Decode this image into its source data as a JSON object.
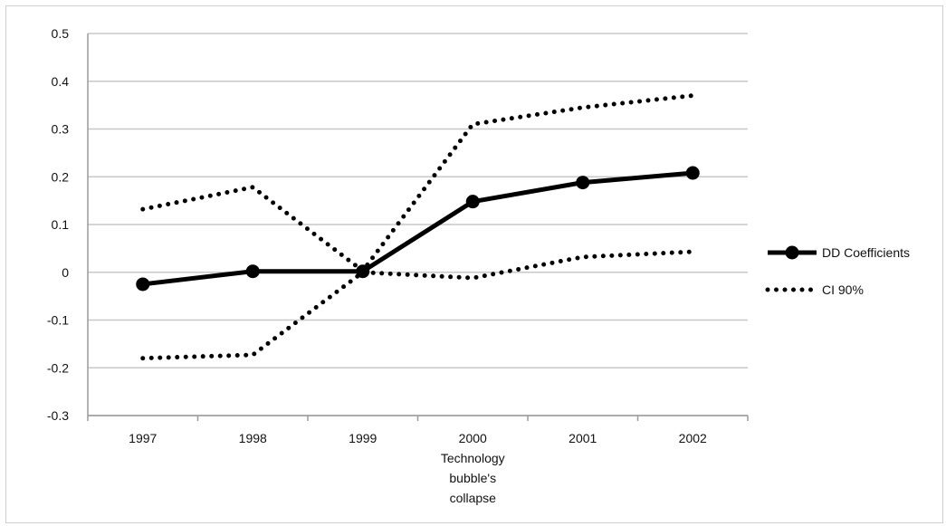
{
  "chart_data": {
    "type": "line",
    "title": "",
    "xlabel": "",
    "ylabel": "",
    "categories": [
      "1997",
      "1998",
      "1999",
      "2000",
      "2001",
      "2002"
    ],
    "ylim": [
      -0.3,
      0.5
    ],
    "y_ticks": [
      "0.5",
      "0.4",
      "0.3",
      "0.2",
      "0.1",
      "0",
      "-0.1",
      "-0.2",
      "-0.3"
    ],
    "grid": "horizontal",
    "legend_position": "right",
    "series": [
      {
        "name": "DD Coefficients",
        "style": "solid-markers",
        "values": [
          -0.025,
          0.002,
          0.002,
          0.148,
          0.188,
          0.208
        ]
      },
      {
        "name": "CI 90%",
        "style": "dotted",
        "values": [
          0.132,
          0.178,
          0.003,
          0.31,
          0.345,
          0.37
        ]
      },
      {
        "name": "",
        "style": "dotted",
        "values": [
          -0.18,
          -0.173,
          0.0,
          -0.012,
          0.032,
          0.043
        ]
      }
    ],
    "annotations": [
      {
        "x": "2000",
        "lines": [
          "Technology",
          "bubble's",
          "collapse"
        ]
      }
    ],
    "colors": {
      "line": "#000000",
      "grid": "#c8c8c8",
      "axis": "#9a9a9a"
    }
  }
}
